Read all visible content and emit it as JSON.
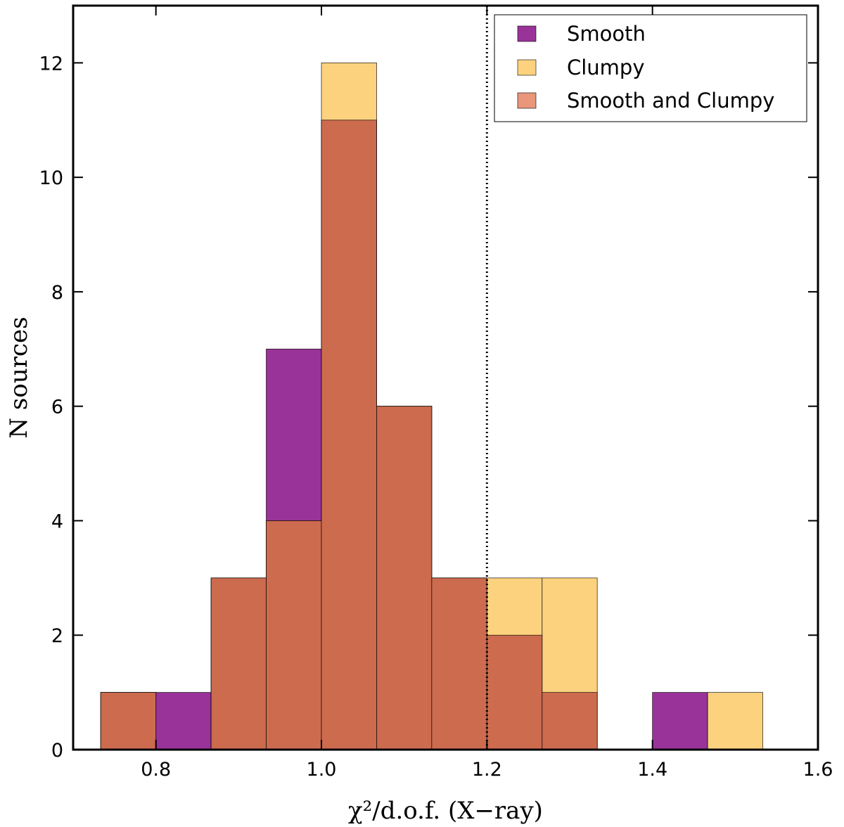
{
  "chart_data": {
    "type": "bar",
    "subtype": "overlaid-histogram",
    "xlabel": "χ²/d.o.f. (X−ray)",
    "ylabel": "N sources",
    "xlim": [
      0.7,
      1.6
    ],
    "ylim": [
      0,
      13
    ],
    "xticks": [
      0.8,
      1.0,
      1.2,
      1.4,
      1.6
    ],
    "xtick_labels": [
      "0.8",
      "1.0",
      "1.2",
      "1.4",
      "1.6"
    ],
    "yticks": [
      0,
      2,
      4,
      6,
      8,
      10,
      12
    ],
    "ytick_labels": [
      "0",
      "2",
      "4",
      "6",
      "8",
      "10",
      "12"
    ],
    "bin_edges": [
      0.7333,
      0.8,
      0.8667,
      0.9333,
      1.0,
      1.0667,
      1.1333,
      1.2,
      1.2667,
      1.3333,
      1.4,
      1.4667,
      1.5333
    ],
    "series": [
      {
        "name": "Smooth",
        "color": "#993399",
        "values": [
          1,
          1,
          3,
          7,
          11,
          6,
          3,
          2,
          1,
          0,
          1,
          0
        ]
      },
      {
        "name": "Clumpy",
        "color": "#fdd27e",
        "values": [
          1,
          0,
          3,
          4,
          12,
          6,
          3,
          3,
          3,
          0,
          0,
          1
        ]
      },
      {
        "name": "Smooth and Clumpy",
        "color": "#cc6b4e",
        "values": [
          1,
          0,
          3,
          4,
          11,
          6,
          3,
          2,
          1,
          0,
          0,
          0
        ]
      }
    ],
    "legend_swatch_colors": [
      "#993399",
      "#fdd27e",
      "#e9967a"
    ],
    "vline": {
      "x": 1.2,
      "style": "dotted"
    },
    "legend_position": "top-right"
  }
}
